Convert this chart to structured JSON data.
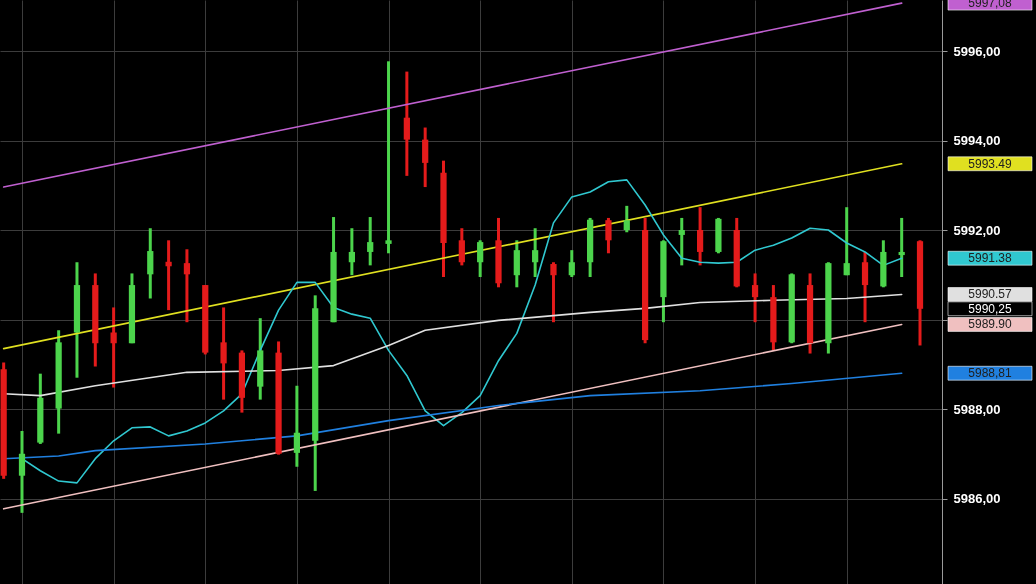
{
  "chart_data": {
    "type": "candlestick",
    "categories": [
      null,
      null,
      null,
      null,
      null,
      null,
      null,
      null,
      null,
      null,
      null,
      null,
      null,
      null,
      null,
      null,
      null,
      null,
      null,
      null,
      null,
      null,
      null,
      null,
      null,
      null,
      null,
      null,
      null,
      null,
      null,
      null,
      null,
      null,
      null,
      null,
      null,
      null,
      null,
      null,
      null,
      null,
      null,
      null,
      null,
      null,
      null,
      null,
      null,
      null,
      null
    ],
    "ohlc": [
      [
        5988.9,
        5989.05,
        5986.45,
        5986.52
      ],
      [
        5986.52,
        5987.52,
        5985.69,
        5987.01
      ],
      [
        5987.26,
        5988.8,
        5987.23,
        5988.26
      ],
      [
        5988.02,
        5989.77,
        5987.46,
        5989.5
      ],
      [
        5989.72,
        5991.29,
        5988.71,
        5990.78
      ],
      [
        5990.78,
        5991.04,
        5988.96,
        5989.48
      ],
      [
        5989.72,
        5990.28,
        5988.49,
        5989.48
      ],
      [
        5989.48,
        5991.04,
        5989.48,
        5990.78
      ],
      [
        5991.02,
        5992.05,
        5990.48,
        5991.54
      ],
      [
        5991.3,
        5991.78,
        5990.22,
        5991.2
      ],
      [
        5991.27,
        5991.58,
        5989.95,
        5991.02
      ],
      [
        5990.78,
        5990.78,
        5989.23,
        5989.27
      ],
      [
        5989.5,
        5990.28,
        5988.22,
        5989.03
      ],
      [
        5989.27,
        5989.32,
        5987.93,
        5988.26
      ],
      [
        5988.51,
        5990.04,
        5988.22,
        5989.32
      ],
      [
        5989.27,
        5989.52,
        5986.99,
        5987.01
      ],
      [
        5987.03,
        5988.53,
        5986.72,
        5987.48
      ],
      [
        5987.3,
        5990.55,
        5986.18,
        5990.26
      ],
      [
        5989.95,
        5992.3,
        5989.95,
        5991.52
      ],
      [
        5991.29,
        5992.05,
        5991.0,
        5991.52
      ],
      [
        5991.52,
        5992.3,
        5991.22,
        5991.74
      ],
      [
        5991.7,
        5995.78,
        5991.49,
        5991.78
      ],
      [
        5994.52,
        5995.55,
        5993.22,
        5994.03
      ],
      [
        5994.03,
        5994.3,
        5992.97,
        5993.51
      ],
      [
        5993.29,
        5993.56,
        5990.96,
        5991.72
      ],
      [
        5991.78,
        5992.05,
        5991.22,
        5991.29
      ],
      [
        5991.29,
        5991.78,
        5990.96,
        5991.74
      ],
      [
        5991.78,
        5992.28,
        5990.73,
        5990.82
      ],
      [
        5991.0,
        5991.78,
        5990.73,
        5991.56
      ],
      [
        5991.29,
        5992.05,
        5990.96,
        5991.56
      ],
      [
        5991.25,
        5991.29,
        5989.95,
        5991.0
      ],
      [
        5991.0,
        5991.56,
        5990.96,
        5991.29
      ],
      [
        5991.29,
        5992.28,
        5990.96,
        5992.24
      ],
      [
        5992.23,
        5992.28,
        5991.49,
        5991.78
      ],
      [
        5992.01,
        5992.55,
        5991.96,
        5992.23
      ],
      [
        5992.01,
        5992.28,
        5989.48,
        5989.55
      ],
      [
        5990.51,
        5991.78,
        5989.95,
        5991.76
      ],
      [
        5991.9,
        5992.28,
        5991.22,
        5992.01
      ],
      [
        5992.01,
        5992.52,
        5991.22,
        5991.52
      ],
      [
        5991.52,
        5992.28,
        5991.49,
        5992.26
      ],
      [
        5992.01,
        5992.28,
        5990.73,
        5990.75
      ],
      [
        5990.78,
        5991.04,
        5989.95,
        5990.51
      ],
      [
        5990.51,
        5990.78,
        5989.32,
        5989.5
      ],
      [
        5989.5,
        5991.04,
        5989.48,
        5991.02
      ],
      [
        5990.78,
        5991.04,
        5989.25,
        5989.48
      ],
      [
        5989.48,
        5991.29,
        5989.25,
        5991.27
      ],
      [
        5991.0,
        5992.52,
        5991.0,
        5991.27
      ],
      [
        5991.29,
        5991.52,
        5989.95,
        5990.78
      ],
      [
        5990.75,
        5991.78,
        5990.73,
        5991.52
      ],
      [
        5991.45,
        5992.28,
        5990.96,
        5991.52
      ],
      [
        5991.76,
        5991.78,
        5989.43,
        5990.25
      ]
    ],
    "colors": [
      "#e41b1b",
      "#4cd44c",
      "#4cd44c",
      "#4cd44c",
      "#4cd44c",
      "#e41b1b",
      "#e41b1b",
      "#4cd44c",
      "#4cd44c",
      "#e41b1b",
      "#e41b1b",
      "#e41b1b",
      "#e41b1b",
      "#e41b1b",
      "#4cd44c",
      "#e41b1b",
      "#4cd44c",
      "#4cd44c",
      "#4cd44c",
      "#4cd44c",
      "#4cd44c",
      "#4cd44c",
      "#e41b1b",
      "#e41b1b",
      "#e41b1b",
      "#e41b1b",
      "#4cd44c",
      "#e41b1b",
      "#4cd44c",
      "#4cd44c",
      "#e41b1b",
      "#4cd44c",
      "#4cd44c",
      "#e41b1b",
      "#4cd44c",
      "#e41b1b",
      "#4cd44c",
      "#4cd44c",
      "#e41b1b",
      "#4cd44c",
      "#e41b1b",
      "#e41b1b",
      "#e41b1b",
      "#4cd44c",
      "#e41b1b",
      "#4cd44c",
      "#4cd44c",
      "#e41b1b",
      "#4cd44c",
      "#4cd44c",
      "#e41b1b"
    ],
    "series": [
      {
        "type": "line",
        "color": "#c060d0",
        "values": [
          5992.97,
          null,
          null,
          null,
          null,
          null,
          null,
          null,
          null,
          null,
          null,
          null,
          null,
          null,
          null,
          null,
          null,
          null,
          null,
          null,
          null,
          null,
          null,
          null,
          null,
          null,
          null,
          null,
          null,
          null,
          null,
          null,
          null,
          null,
          null,
          null,
          null,
          null,
          null,
          null,
          null,
          null,
          null,
          null,
          null,
          null,
          null,
          null,
          null,
          5997.08,
          null
        ]
      },
      {
        "type": "line",
        "color": "#e0e020",
        "values": [
          5989.36,
          null,
          null,
          null,
          null,
          null,
          null,
          null,
          null,
          null,
          null,
          null,
          null,
          null,
          null,
          null,
          null,
          null,
          null,
          null,
          null,
          null,
          null,
          null,
          null,
          null,
          null,
          null,
          null,
          null,
          null,
          null,
          null,
          null,
          null,
          null,
          null,
          null,
          null,
          null,
          null,
          null,
          null,
          null,
          null,
          null,
          null,
          null,
          null,
          5993.49,
          null
        ]
      },
      {
        "type": "line",
        "color": "#30c8d0",
        "values": [
          null,
          5986.9,
          5986.63,
          5986.4,
          5986.36,
          5986.9,
          5987.3,
          5987.59,
          5987.61,
          5987.41,
          5987.52,
          5987.7,
          5987.97,
          5988.35,
          5989.32,
          5990.22,
          5990.84,
          5990.84,
          5990.28,
          5990.13,
          5990.04,
          5989.32,
          5988.76,
          5987.97,
          5987.64,
          5987.93,
          5988.31,
          5989.09,
          5989.7,
          5990.78,
          5992.17,
          5992.75,
          5992.86,
          5993.09,
          5993.13,
          5992.57,
          5991.9,
          5991.38,
          5991.29,
          5991.27,
          5991.29,
          5991.56,
          5991.67,
          5991.83,
          5992.05,
          5992.01,
          5991.72,
          5991.52,
          5991.22,
          5991.38,
          null
        ]
      },
      {
        "type": "line",
        "color": "#e0e0e0",
        "values": [
          5988.35,
          null,
          5988.31,
          null,
          null,
          5988.53,
          null,
          null,
          null,
          null,
          5988.83,
          null,
          null,
          null,
          null,
          5988.87,
          null,
          null,
          5988.98,
          null,
          null,
          5989.43,
          null,
          5989.77,
          null,
          null,
          null,
          5989.99,
          null,
          null,
          null,
          null,
          5990.17,
          null,
          null,
          5990.26,
          null,
          null,
          5990.39,
          null,
          null,
          null,
          5990.44,
          null,
          null,
          null,
          5990.48,
          null,
          null,
          5990.57,
          null
        ]
      },
      {
        "type": "line",
        "color": "#f0c0c0",
        "values": [
          5985.78,
          null,
          null,
          null,
          null,
          null,
          null,
          null,
          null,
          null,
          null,
          null,
          null,
          null,
          null,
          null,
          null,
          null,
          null,
          null,
          null,
          null,
          null,
          null,
          null,
          null,
          null,
          null,
          null,
          null,
          null,
          null,
          null,
          null,
          null,
          null,
          null,
          null,
          null,
          null,
          null,
          null,
          null,
          null,
          null,
          null,
          null,
          null,
          null,
          5989.9,
          null
        ]
      },
      {
        "type": "line",
        "color": "#2080e0",
        "values": [
          5986.9,
          null,
          null,
          5986.96,
          null,
          5987.08,
          null,
          null,
          null,
          null,
          null,
          5987.23,
          null,
          null,
          null,
          null,
          5987.41,
          null,
          null,
          null,
          null,
          5987.75,
          null,
          null,
          null,
          null,
          null,
          5988.09,
          null,
          null,
          null,
          null,
          5988.31,
          null,
          null,
          null,
          null,
          null,
          5988.42,
          null,
          null,
          null,
          null,
          5988.58,
          null,
          null,
          null,
          null,
          null,
          5988.81,
          null
        ]
      }
    ],
    "ylim": [
      5984.1,
      5997.15
    ],
    "yticks": [
      {
        "value": 5986,
        "label": "5986,00"
      },
      {
        "value": 5988,
        "label": "5988,00"
      },
      {
        "value": 5990,
        "label": null
      },
      {
        "value": 5992,
        "label": "5992,00"
      },
      {
        "value": 5994,
        "label": "5994,00"
      },
      {
        "value": 5996,
        "label": "5996,00"
      }
    ],
    "tick_labels": "y",
    "grid": true,
    "annotations": [
      "5997,08",
      "5993.49",
      "5991.38",
      "5990.57",
      "5990,25",
      "5989.90",
      "5988,81"
    ]
  }
}
